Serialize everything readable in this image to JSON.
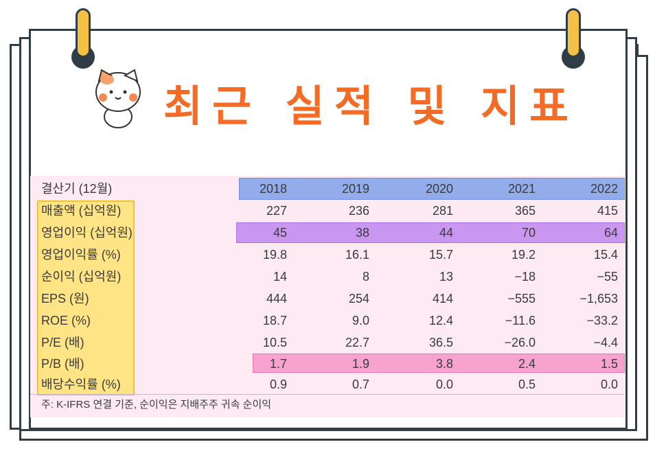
{
  "title": "최근 실적 및 지표",
  "table": {
    "header_label": "결산기 (12월)",
    "years": [
      "2018",
      "2019",
      "2020",
      "2021",
      "2022"
    ],
    "rows": [
      {
        "label": "매출액 (십억원)",
        "values": [
          "227",
          "236",
          "281",
          "365",
          "415"
        ]
      },
      {
        "label": "영업이익 (십억원)",
        "values": [
          "45",
          "38",
          "44",
          "70",
          "64"
        ]
      },
      {
        "label": "영업이익률 (%)",
        "values": [
          "19.8",
          "16.1",
          "15.7",
          "19.2",
          "15.4"
        ]
      },
      {
        "label": "순이익 (십억원)",
        "values": [
          "14",
          "8",
          "13",
          "−18",
          "−55"
        ]
      },
      {
        "label": "EPS (원)",
        "values": [
          "444",
          "254",
          "414",
          "−555",
          "−1,653"
        ]
      },
      {
        "label": "ROE (%)",
        "values": [
          "18.7",
          "9.0",
          "12.4",
          "−11.6",
          "−33.2"
        ]
      },
      {
        "label": "P/E (배)",
        "values": [
          "10.5",
          "22.7",
          "36.5",
          "−26.0",
          "−4.4"
        ]
      },
      {
        "label": "P/B (배)",
        "values": [
          "1.7",
          "1.9",
          "3.8",
          "2.4",
          "1.5"
        ]
      },
      {
        "label": "배당수익률 (%)",
        "values": [
          "0.9",
          "0.7",
          "0.0",
          "0.5",
          "0.0"
        ]
      }
    ],
    "note": "주: K-IFRS 연결 기준, 순이익은 지배주주 귀속 순이익"
  },
  "colors": {
    "title": "#f36b25",
    "table_bg": "#fdeaf3",
    "header_highlight": "#93aceb",
    "label_highlight": "#ffe486",
    "operating_profit_highlight": "#c996f0",
    "pb_highlight": "#f7a3d0",
    "frame": "#2f3d46",
    "clip": "#f4c145"
  },
  "icons": [
    "cat-mascot-icon",
    "binder-clip-icon"
  ]
}
